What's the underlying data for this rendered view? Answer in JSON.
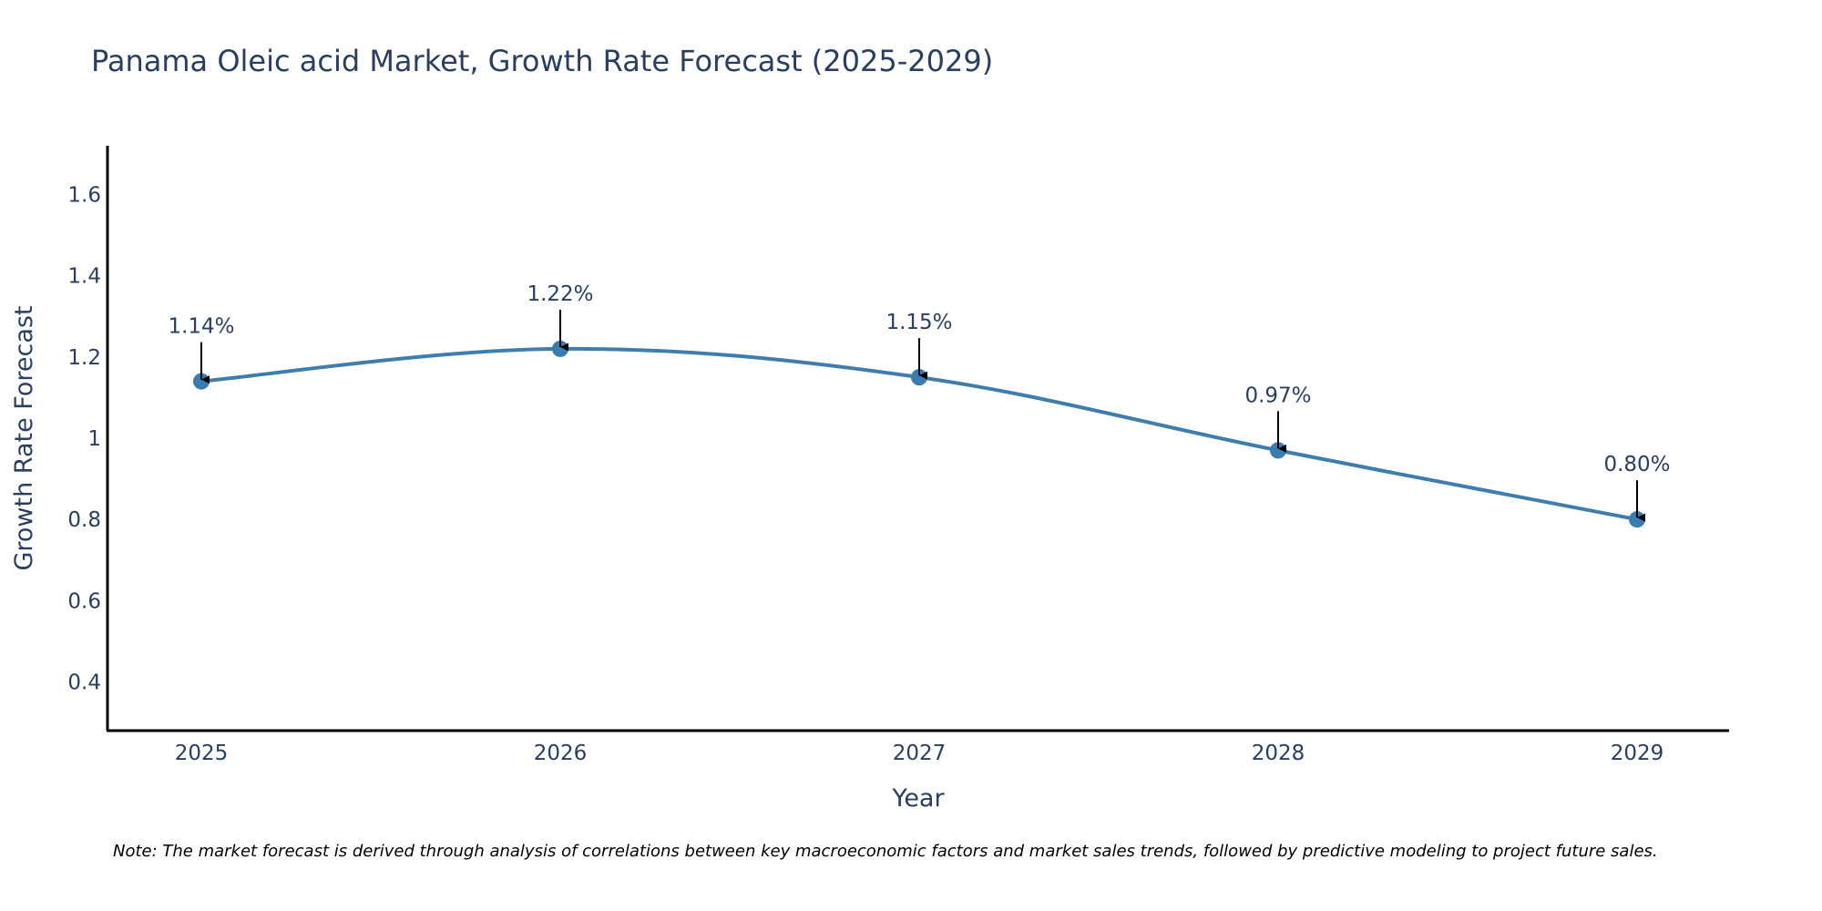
{
  "chart_data": {
    "type": "line",
    "title": "Panama Oleic acid Market, Growth Rate Forecast (2025-2029)",
    "xlabel": "Year",
    "ylabel": "Growth Rate Forecast",
    "categories": [
      "2025",
      "2026",
      "2027",
      "2028",
      "2029"
    ],
    "values": [
      1.14,
      1.22,
      1.15,
      0.97,
      0.8
    ],
    "data_labels": [
      "1.14%",
      "1.22%",
      "1.15%",
      "0.97%",
      "0.80%"
    ],
    "ylim": [
      0.28,
      1.72
    ],
    "yticks": [
      0.4,
      0.6,
      0.8,
      1,
      1.2,
      1.4,
      1.6
    ],
    "ytick_labels": [
      "0.4",
      "0.6",
      "0.8",
      "1",
      "1.2",
      "1.4",
      "1.6"
    ],
    "grid": false,
    "legend": "none",
    "line_color": "#3f7dad",
    "marker_color": "#3a7bb0",
    "arrow_color": "#000000",
    "note": "Note: The market forecast is derived through analysis of correlations between key macroeconomic factors and market sales trends, followed by predictive modeling to project future sales."
  }
}
